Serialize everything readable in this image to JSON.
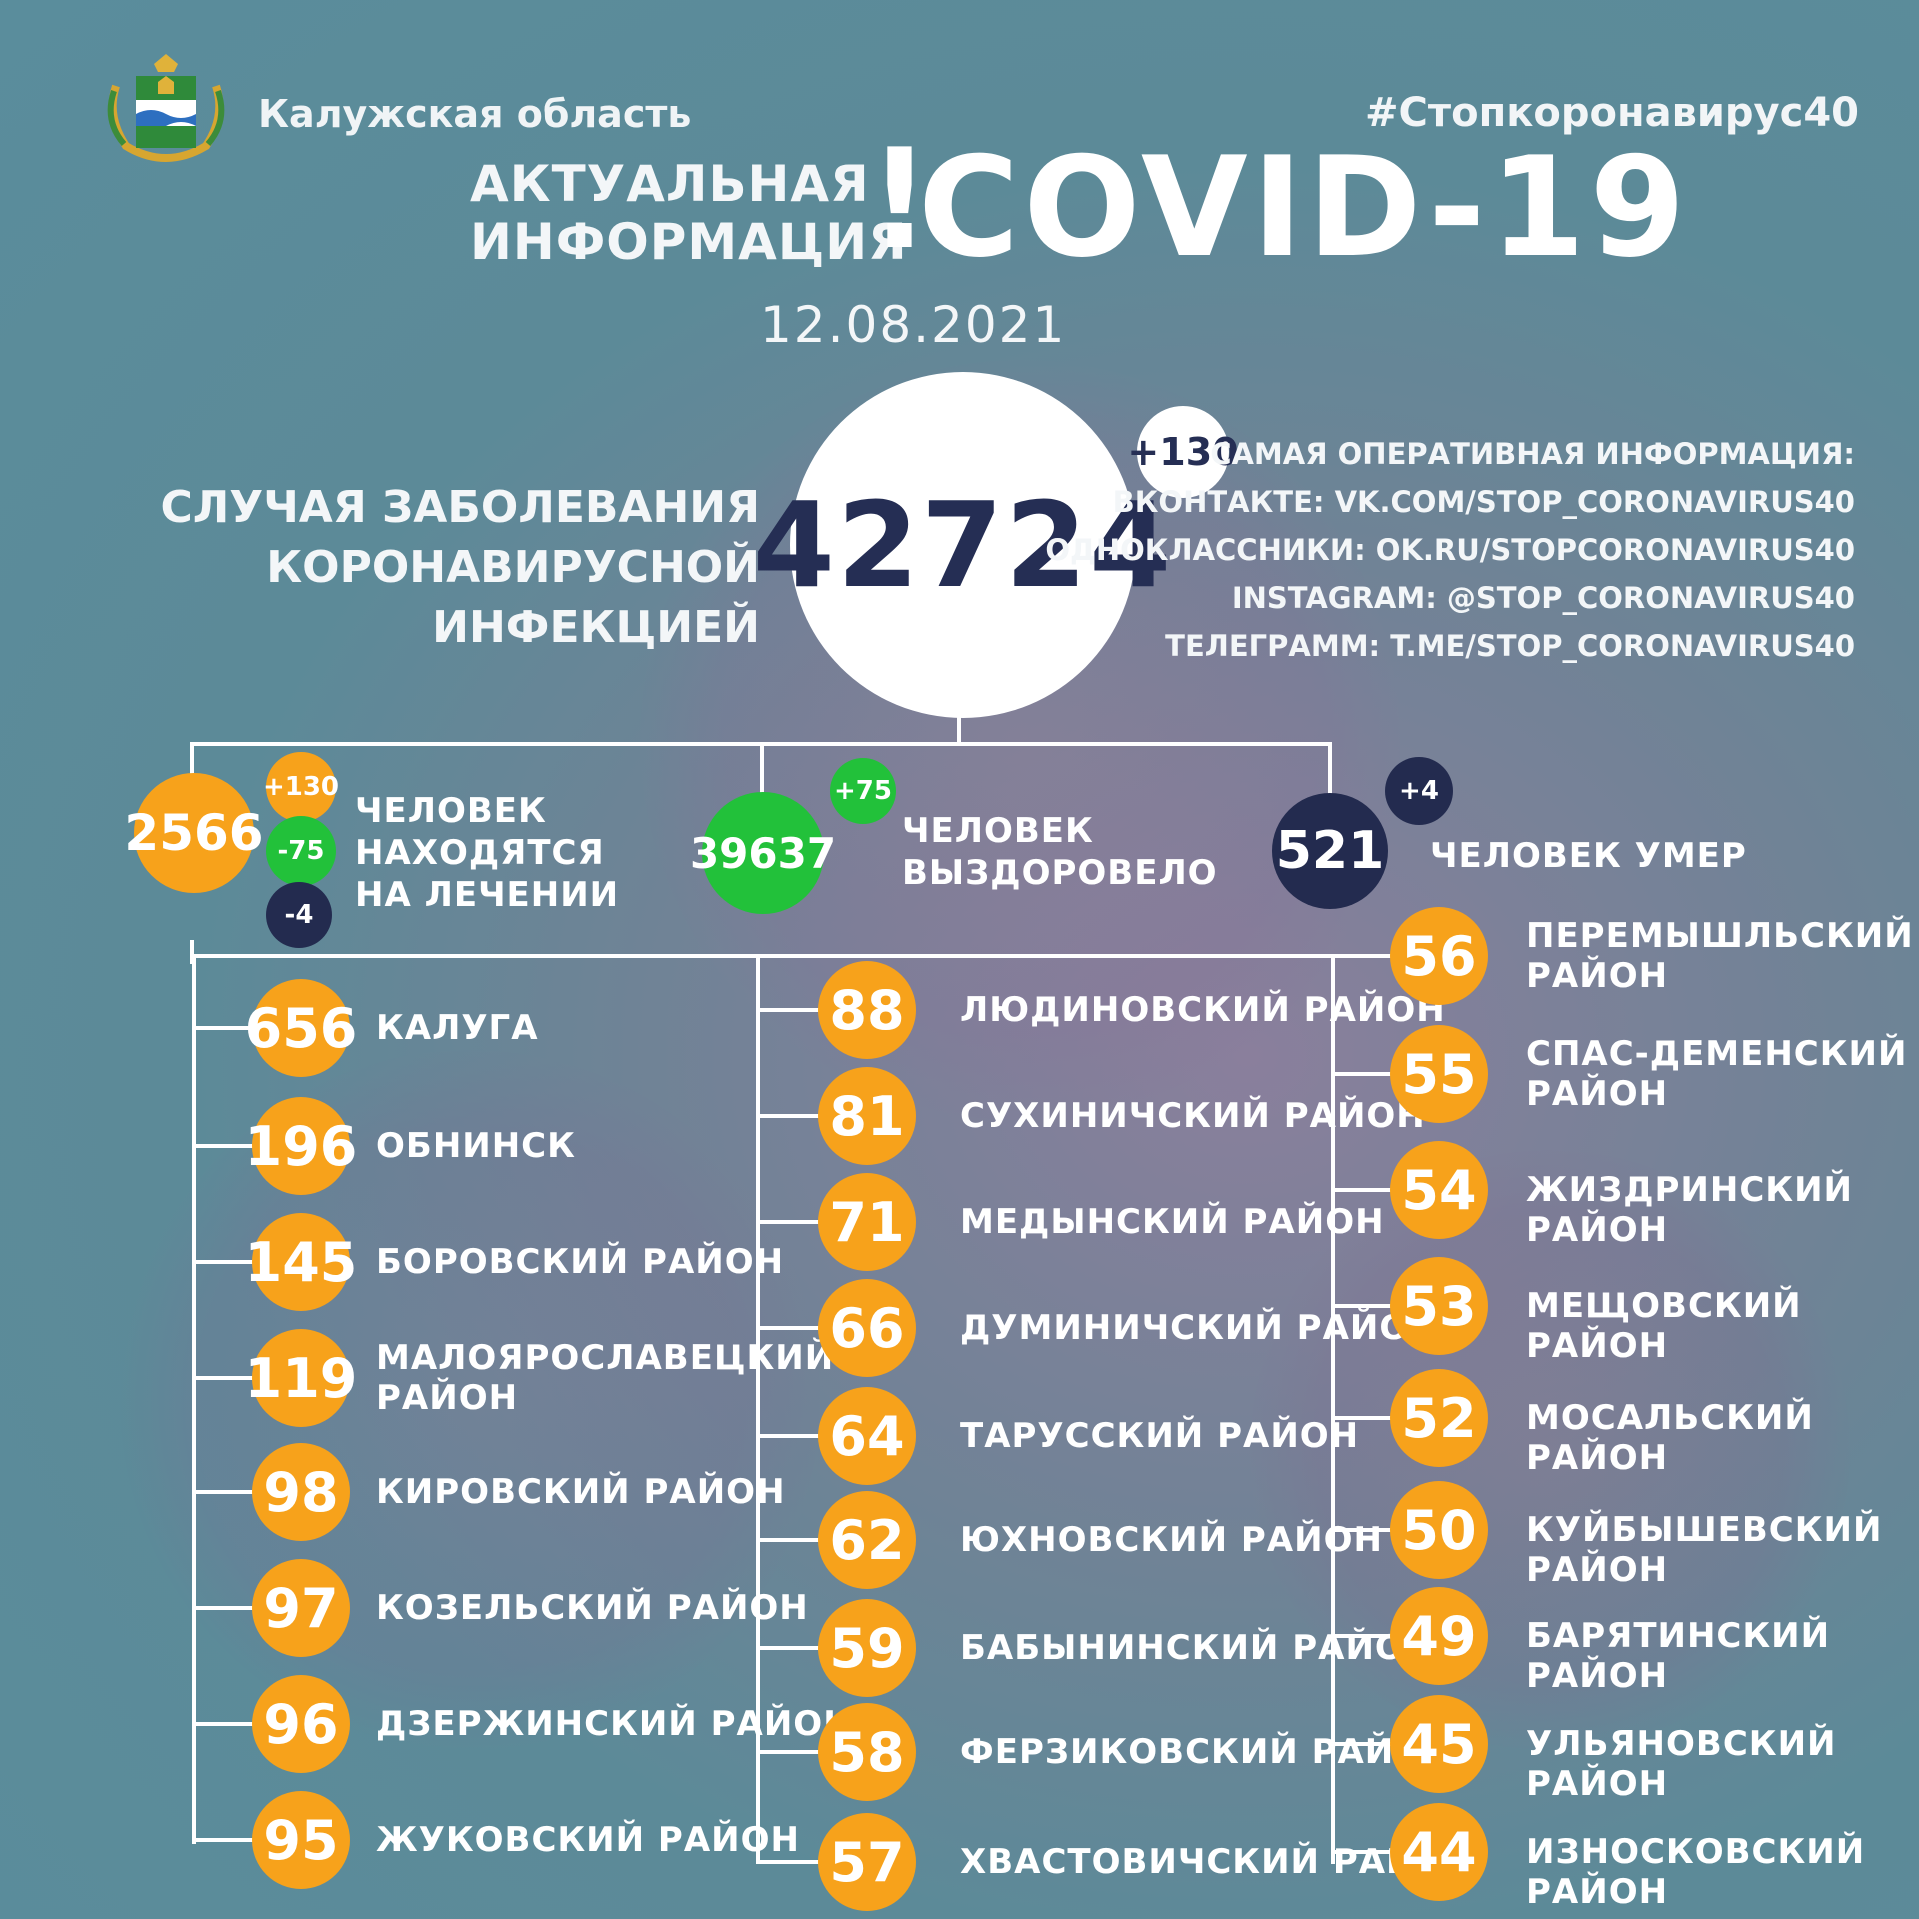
{
  "header": {
    "region": "Калужская область",
    "hashtag": "#Стопкоронавирус40",
    "title_line1": "АКТУАЛЬНАЯ",
    "title_line2": "ИНФОРМАЦИЯ",
    "title_mark": "!",
    "title_main": "COVID-19",
    "date": "12.08.2021"
  },
  "total": {
    "value": "42724",
    "delta": "+130",
    "label_line1": "СЛУЧАЯ ЗАБОЛЕВАНИЯ",
    "label_line2": "КОРОНАВИРУСНОЙ ИНФЕКЦИЕЙ"
  },
  "info": {
    "heading": "САМАЯ ОПЕРАТИВНАЯ ИНФОРМАЦИЯ:",
    "vk": "ВКОНТАКТЕ: VK.COM/STOP_CORONAVIRUS40",
    "ok": "ОДНОКЛАССНИКИ: OK.RU/STOPCORONAVIRUS40",
    "instagram": "INSTAGRAM: @STOP_CORONAVIRUS40",
    "telegram": "ТЕЛЕГРАММ: T.ME/STOP_CORONAVIRUS40"
  },
  "treatment": {
    "value": "2566",
    "delta_plus": "+130",
    "delta_green": "-75",
    "delta_navy": "-4",
    "label_line1": "ЧЕЛОВЕК",
    "label_line2": "НАХОДЯТСЯ",
    "label_line3": "НА ЛЕЧЕНИИ"
  },
  "recovered": {
    "value": "39637",
    "delta": "+75",
    "label_line1": "ЧЕЛОВЕК",
    "label_line2": "ВЫЗДОРОВЕЛО"
  },
  "died": {
    "value": "521",
    "delta": "+4",
    "label": "ЧЕЛОВЕК УМЕР"
  },
  "districts_col1": [
    {
      "value": "656",
      "name": "КАЛУГА"
    },
    {
      "value": "196",
      "name": "ОБНИНСК"
    },
    {
      "value": "145",
      "name": "БОРОВСКИЙ РАЙОН"
    },
    {
      "value": "119",
      "name": "МАЛОЯРОСЛАВЕЦКИЙ",
      "name2": "РАЙОН"
    },
    {
      "value": "98",
      "name": "КИРОВСКИЙ РАЙОН"
    },
    {
      "value": "97",
      "name": "КОЗЕЛЬСКИЙ РАЙОН"
    },
    {
      "value": "96",
      "name": "ДЗЕРЖИНСКИЙ РАЙОН"
    },
    {
      "value": "95",
      "name": "ЖУКОВСКИЙ РАЙОН"
    }
  ],
  "districts_col2": [
    {
      "value": "88",
      "name": "ЛЮДИНОВСКИЙ РАЙОН"
    },
    {
      "value": "81",
      "name": "СУХИНИЧСКИЙ РАЙОН"
    },
    {
      "value": "71",
      "name": "МЕДЫНСКИЙ РАЙОН"
    },
    {
      "value": "66",
      "name": "ДУМИНИЧСКИЙ РАЙОН"
    },
    {
      "value": "64",
      "name": "ТАРУССКИЙ РАЙОН"
    },
    {
      "value": "62",
      "name": "ЮХНОВСКИЙ РАЙОН"
    },
    {
      "value": "59",
      "name": "БАБЫНИНСКИЙ РАЙОН"
    },
    {
      "value": "58",
      "name": "ФЕРЗИКОВСКИЙ РАЙОН"
    },
    {
      "value": "57",
      "name": "ХВАСТОВИЧСКИЙ РАЙОН"
    }
  ],
  "districts_col3": [
    {
      "value": "56",
      "name": "ПЕРЕМЫШЛЬСКИЙ",
      "name2": "РАЙОН"
    },
    {
      "value": "55",
      "name": "СПАС-ДЕМЕНСКИЙ",
      "name2": "РАЙОН"
    },
    {
      "value": "54",
      "name": "ЖИЗДРИНСКИЙ РАЙОН"
    },
    {
      "value": "53",
      "name": "МЕЩОВСКИЙ РАЙОН"
    },
    {
      "value": "52",
      "name": "МОСАЛЬСКИЙ РАЙОН"
    },
    {
      "value": "50",
      "name": "КУЙБЫШЕВСКИЙ РАЙОН"
    },
    {
      "value": "49",
      "name": "БАРЯТИНСКИЙ РАЙОН"
    },
    {
      "value": "45",
      "name": "УЛЬЯНОВСКИЙ РАЙОН"
    },
    {
      "value": "44",
      "name": "ИЗНОСКОВСКИЙ РАЙОН"
    }
  ]
}
